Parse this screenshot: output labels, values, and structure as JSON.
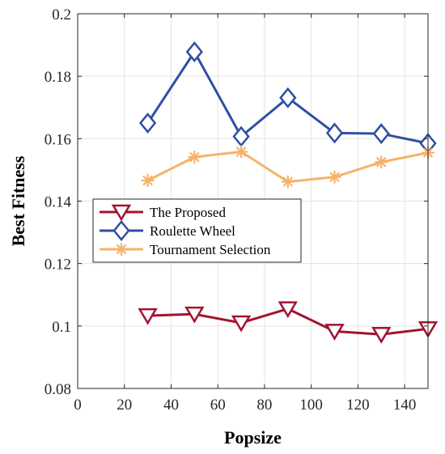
{
  "chart_data": {
    "type": "line",
    "title": "",
    "xlabel": "Popsize",
    "ylabel": "Best Fitness",
    "xlim": [
      0,
      150
    ],
    "ylim": [
      0.08,
      0.2
    ],
    "xticks": [
      0,
      20,
      40,
      60,
      80,
      100,
      120,
      140
    ],
    "xtick_labels": [
      "0",
      "20",
      "40",
      "60",
      "80",
      "100",
      "120",
      "140"
    ],
    "yticks": [
      0.08,
      0.1,
      0.12,
      0.14,
      0.16,
      0.18,
      0.2
    ],
    "ytick_labels": [
      "0.08",
      "0.1",
      "0.12",
      "0.14",
      "0.16",
      "0.18",
      "0.2"
    ],
    "grid": true,
    "legend_position": "center-left",
    "x": [
      30,
      50,
      70,
      90,
      110,
      130,
      150
    ],
    "series": [
      {
        "name": "The Proposed",
        "color": "#A2142F",
        "marker": "triangle-down",
        "values": [
          0.1033,
          0.1038,
          0.101,
          0.1055,
          0.0983,
          0.0973,
          0.0991
        ]
      },
      {
        "name": "Roulette Wheel",
        "color": "#2F4EA3",
        "marker": "diamond",
        "values": [
          0.165,
          0.1878,
          0.1607,
          0.1731,
          0.1618,
          0.1616,
          0.1585
        ]
      },
      {
        "name": "Tournament Selection",
        "color": "#F5B36A",
        "marker": "asterisk",
        "values": [
          0.1466,
          0.1541,
          0.1558,
          0.1462,
          0.1477,
          0.1525,
          0.1555
        ]
      }
    ]
  }
}
